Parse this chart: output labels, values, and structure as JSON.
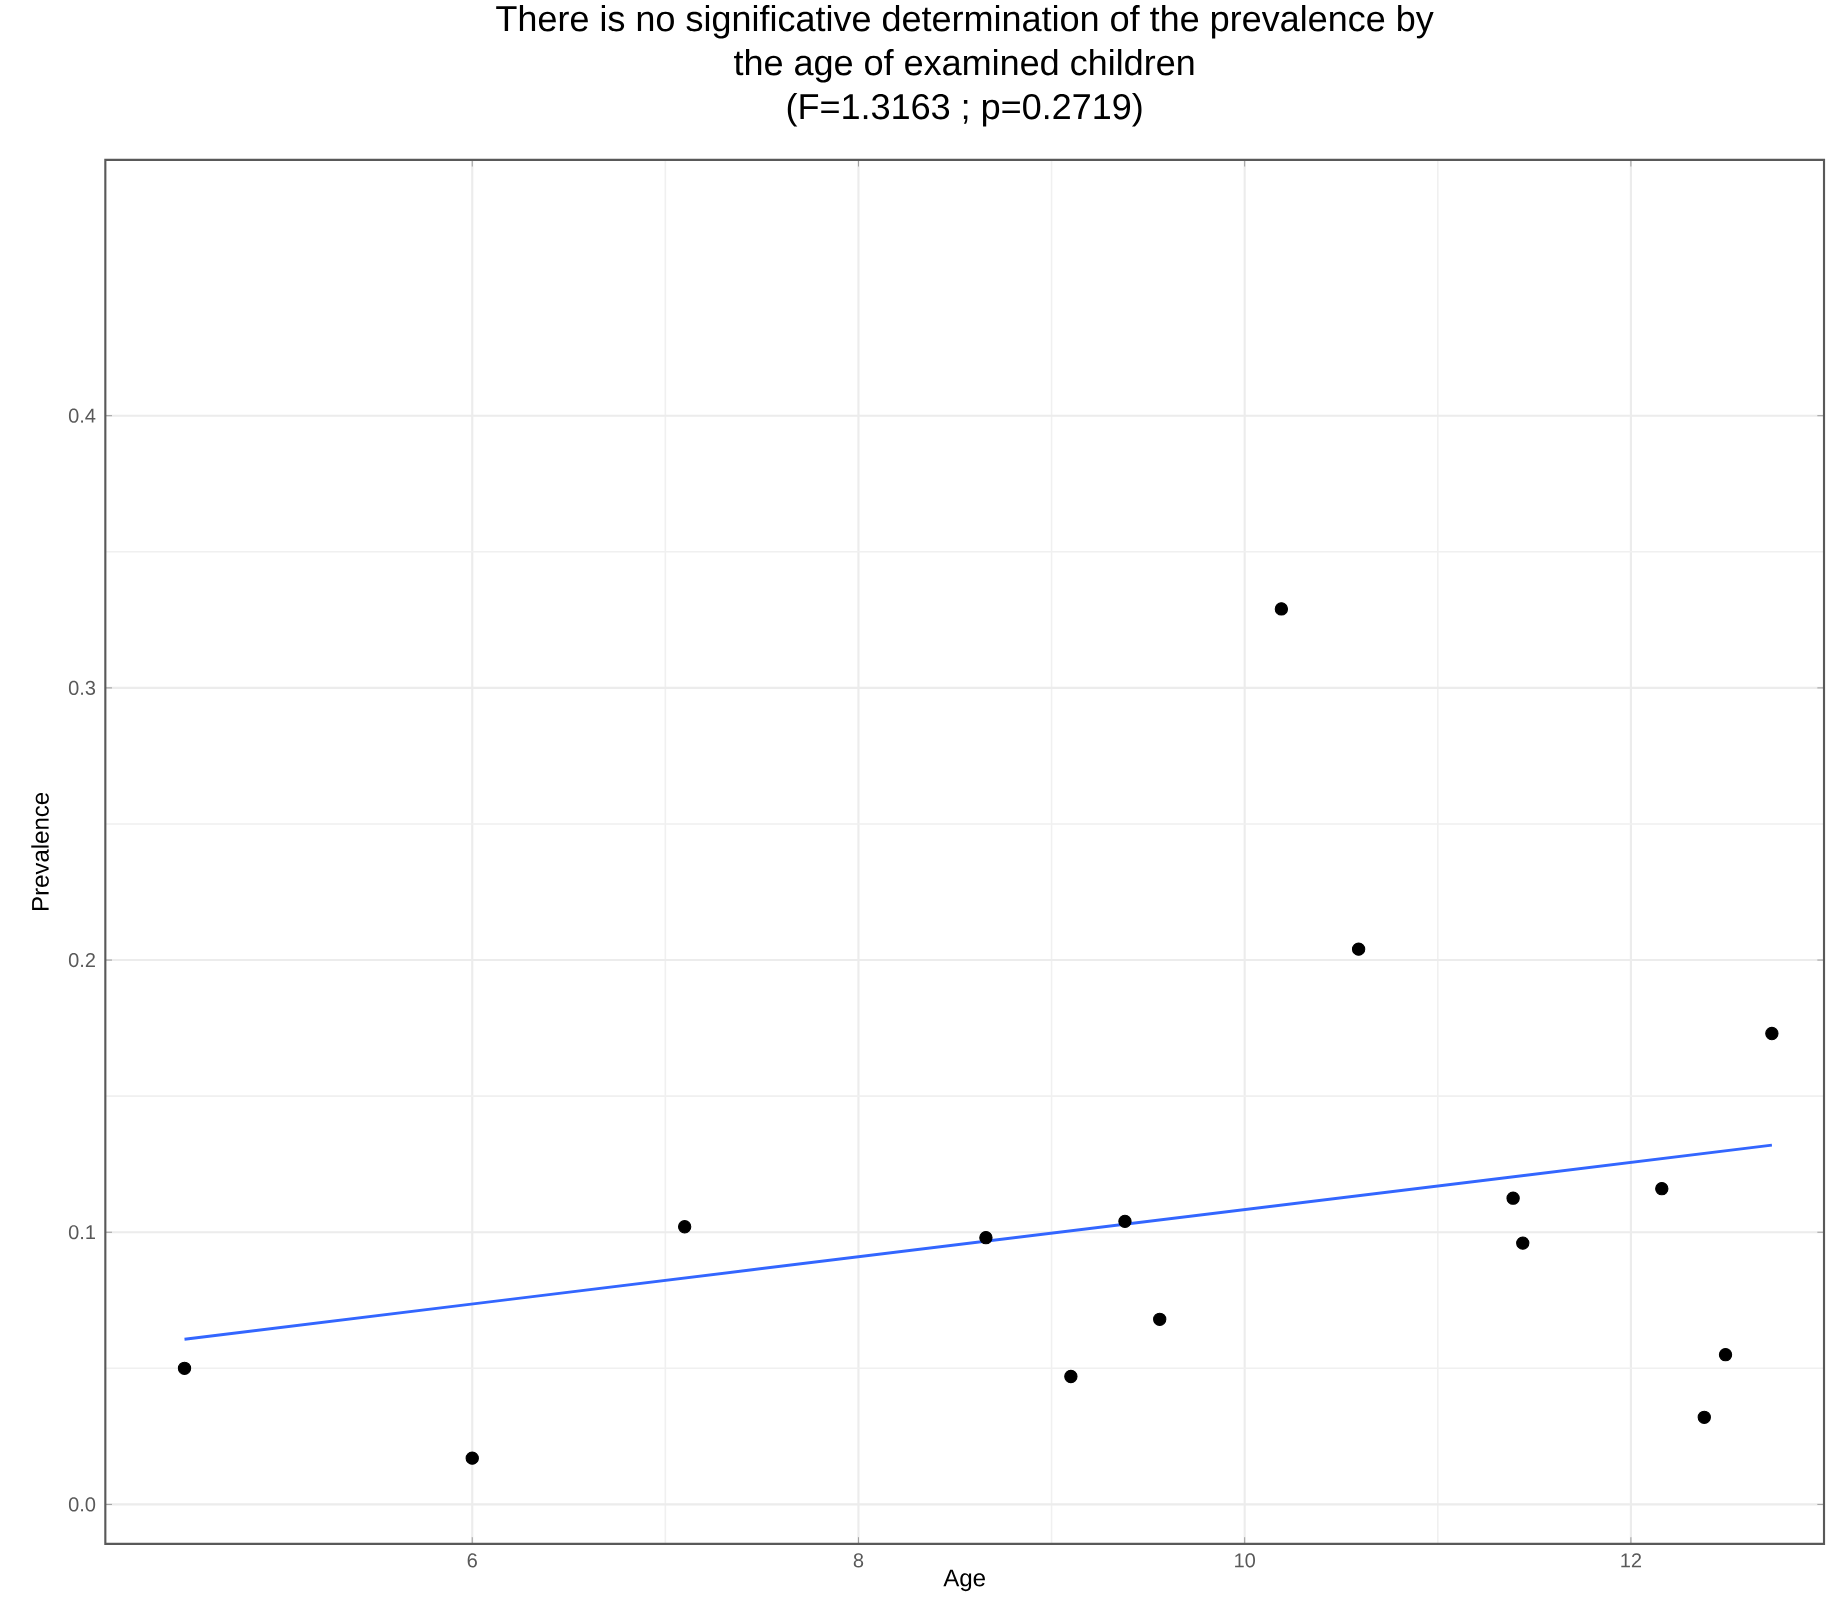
{
  "chart_data": {
    "type": "scatter",
    "title": "There is no significative determination of the prevalence by the age of examined children",
    "subtitle": "(F=1.3163 ; p=0.2719)",
    "xlabel": "Age",
    "ylabel": "Prevalence",
    "xlim": [
      4.1,
      13.0
    ],
    "ylim": [
      -0.0145,
      0.494
    ],
    "xticks": [
      6,
      8,
      10,
      12
    ],
    "yticks": [
      {
        "value": 0,
        "label": "0.0"
      },
      0.1,
      0.2,
      0.3,
      0.4
    ],
    "grid": true,
    "marker": "circle",
    "series": [
      {
        "type": "scatter",
        "color": "#000000",
        "x": [
          4.51,
          6.0,
          7.1,
          8.66,
          9.1,
          9.38,
          9.56,
          10.19,
          10.59,
          11.39,
          11.44,
          12.16,
          12.38,
          12.49,
          12.73
        ],
        "values": [
          0.05,
          0.017,
          0.102,
          0.098,
          0.047,
          0.104,
          0.068,
          0.329,
          0.204,
          0.1125,
          0.096,
          0.116,
          0.032,
          0.055,
          0.173
        ]
      },
      {
        "type": "line",
        "color": "#3366ff",
        "marker": "none",
        "x": [
          4.51,
          12.73
        ],
        "values": [
          0.0607,
          0.132
        ]
      }
    ]
  }
}
